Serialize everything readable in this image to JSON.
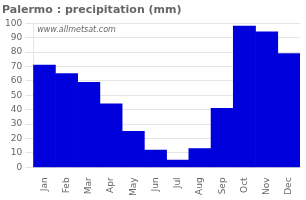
{
  "chart_data": {
    "type": "bar",
    "title": "Palermo : precipitation (mm)",
    "categories": [
      "Jan",
      "Feb",
      "Mar",
      "Apr",
      "May",
      "Jun",
      "Jul",
      "Aug",
      "Sep",
      "Oct",
      "Nov",
      "Dec"
    ],
    "values": [
      71,
      65,
      59,
      44,
      25,
      12,
      5,
      13,
      41,
      98,
      94,
      79
    ],
    "color": "#0000DD",
    "ylim": [
      0,
      100
    ],
    "yticks": [
      0,
      10,
      20,
      30,
      40,
      50,
      60,
      70,
      80,
      90,
      100
    ],
    "grid": true,
    "annotations": [
      "www.allmetsat.com"
    ]
  }
}
